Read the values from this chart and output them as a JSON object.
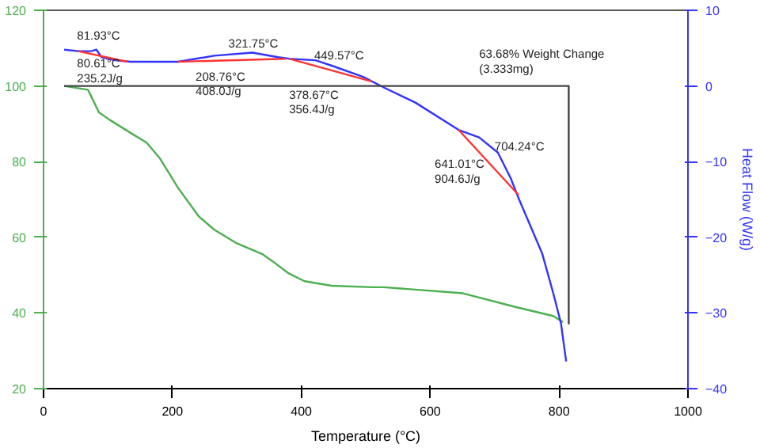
{
  "chart_data": {
    "type": "line",
    "xlabel": "Temperature (°C)",
    "y2label": "Heat Flow (W/g)",
    "xlim": [
      0,
      1000
    ],
    "xticks": [
      0,
      200,
      400,
      600,
      800,
      1000
    ],
    "ylim": [
      20,
      120
    ],
    "yticks": [
      20,
      40,
      60,
      80,
      100,
      120
    ],
    "y2lim": [
      -40,
      10
    ],
    "y2ticks": [
      -40,
      -30,
      -20,
      -10,
      0,
      10
    ],
    "grid": false,
    "line_style": "solid",
    "marker": "none",
    "series": [
      {
        "color": "#4caf50",
        "x": [
          32,
          69,
          86,
          103,
          135,
          160,
          180,
          209,
          241,
          265,
          300,
          339,
          356,
          381,
          405,
          447,
          511,
          528,
          651,
          732,
          791,
          806
        ],
        "values": [
          100,
          99,
          93,
          91,
          87.6,
          85,
          81,
          73,
          65.5,
          62,
          58.4,
          55.6,
          53.6,
          50.4,
          48.4,
          47.2,
          46.8,
          46.8,
          45.2,
          41.6,
          39.2,
          37.6
        ]
      },
      {
        "color": "#3333ff",
        "axis": "y2",
        "x": [
          32,
          54,
          74,
          82,
          90,
          111,
          135,
          209,
          265,
          324,
          364,
          381,
          422,
          450,
          496,
          528,
          577,
          644,
          676,
          705,
          725,
          737,
          757,
          774,
          791,
          803,
          811
        ],
        "values": [
          4.8,
          4.6,
          4.6,
          4.8,
          3.8,
          3.4,
          3.2,
          3.2,
          4,
          4.4,
          3.8,
          3.6,
          3.4,
          2.6,
          1.2,
          -0.2,
          -2.2,
          -5.8,
          -6.8,
          -8.8,
          -12.2,
          -14.8,
          -18.8,
          -22.2,
          -27.4,
          -31.4,
          -36.4
        ]
      },
      {
        "color": "#ff3333",
        "axis": "y2",
        "x": [
          54,
          130
        ],
        "values": [
          4.6,
          3.2
        ]
      },
      {
        "color": "#ff3333",
        "axis": "y2",
        "x": [
          209,
          376
        ],
        "values": [
          3.2,
          3.6
        ]
      },
      {
        "color": "#ff3333",
        "axis": "y2",
        "x": [
          381,
          509
        ],
        "values": [
          3.6,
          0.6
        ]
      },
      {
        "color": "#ff3333",
        "axis": "y2",
        "x": [
          644,
          737
        ],
        "values": [
          -5.8,
          -14.4
        ]
      },
      {
        "color": "#444444",
        "x": [
          32,
          815,
          815
        ],
        "values": [
          100,
          100,
          37
        ]
      }
    ],
    "annotations": [
      "81.93°C",
      "80.61°C\n235.2J/g",
      "321.75°C",
      "208.76°C\n408.0J/g",
      "449.57°C",
      "378.67°C\n356.4J/g",
      "63.68% Weight Change\n(3.333mg)",
      "704.24°C",
      "641.01°C\n904.6J/g"
    ]
  }
}
